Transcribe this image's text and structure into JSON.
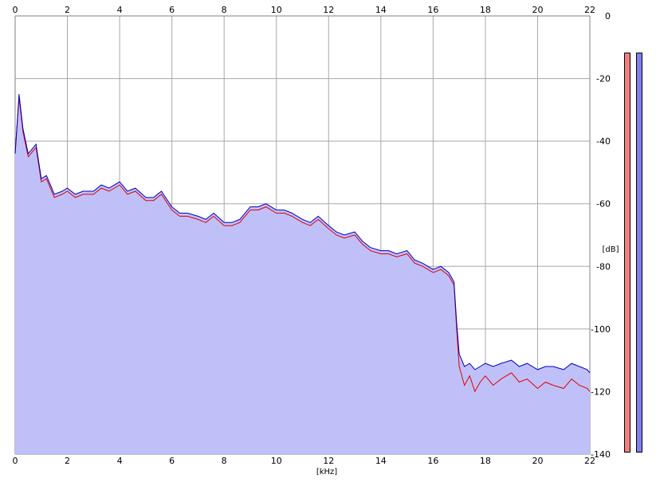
{
  "chart_data": {
    "type": "area",
    "xlabel": "[kHz]",
    "ylabel": "[dB]",
    "xlim": [
      0,
      22
    ],
    "ylim": [
      -140,
      0
    ],
    "x_ticks": [
      "0",
      "2",
      "4",
      "6",
      "8",
      "10",
      "12",
      "14",
      "16",
      "18",
      "20",
      "22"
    ],
    "y_ticks": [
      "0",
      "-20",
      "-40",
      "-60",
      "-80",
      "-100",
      "-120",
      "-140"
    ],
    "grid": true,
    "series": [
      {
        "color": "#e00000",
        "x": [
          0,
          0.15,
          0.3,
          0.5,
          0.8,
          1,
          1.2,
          1.5,
          1.8,
          2,
          2.3,
          2.6,
          3,
          3.3,
          3.6,
          4,
          4.3,
          4.6,
          5,
          5.3,
          5.6,
          6,
          6.3,
          6.6,
          7,
          7.3,
          7.6,
          8,
          8.3,
          8.6,
          9,
          9.3,
          9.6,
          10,
          10.3,
          10.6,
          11,
          11.3,
          11.6,
          12,
          12.3,
          12.6,
          13,
          13.3,
          13.6,
          14,
          14.3,
          14.6,
          15,
          15.3,
          15.6,
          16,
          16.3,
          16.6,
          16.8,
          16.9,
          17,
          17.2,
          17.4,
          17.6,
          17.8,
          18,
          18.3,
          18.6,
          19,
          19.3,
          19.6,
          20,
          20.3,
          20.6,
          21,
          21.3,
          21.6,
          21.9,
          22
        ],
        "values": [
          -44,
          -26,
          -37,
          -45,
          -42,
          -53,
          -52,
          -58,
          -57,
          -56,
          -58,
          -57,
          -57,
          -55,
          -56,
          -54,
          -57,
          -56,
          -59,
          -59,
          -57,
          -62,
          -64,
          -64,
          -65,
          -66,
          -64,
          -67,
          -67,
          -66,
          -62,
          -62,
          -61,
          -63,
          -63,
          -64,
          -66,
          -67,
          -65,
          -68,
          -70,
          -71,
          -70,
          -73,
          -75,
          -76,
          -76,
          -77,
          -76,
          -79,
          -80,
          -82,
          -81,
          -83,
          -86,
          -100,
          -112,
          -118,
          -115,
          -120,
          -117,
          -115,
          -118,
          -116,
          -114,
          -117,
          -116,
          -119,
          -117,
          -118,
          -119,
          -116,
          -118,
          -119,
          -120
        ]
      },
      {
        "color": "#0000c0",
        "x": [
          0,
          0.15,
          0.3,
          0.5,
          0.8,
          1,
          1.2,
          1.5,
          1.8,
          2,
          2.3,
          2.6,
          3,
          3.3,
          3.6,
          4,
          4.3,
          4.6,
          5,
          5.3,
          5.6,
          6,
          6.3,
          6.6,
          7,
          7.3,
          7.6,
          8,
          8.3,
          8.6,
          9,
          9.3,
          9.6,
          10,
          10.3,
          10.6,
          11,
          11.3,
          11.6,
          12,
          12.3,
          12.6,
          13,
          13.3,
          13.6,
          14,
          14.3,
          14.6,
          15,
          15.3,
          15.6,
          16,
          16.3,
          16.6,
          16.8,
          16.9,
          17,
          17.2,
          17.4,
          17.6,
          17.8,
          18,
          18.3,
          18.6,
          19,
          19.3,
          19.6,
          20,
          20.3,
          20.6,
          21,
          21.3,
          21.6,
          21.9,
          22
        ],
        "values": [
          -44,
          -25,
          -36,
          -44,
          -41,
          -52,
          -51,
          -57,
          -56,
          -55,
          -57,
          -56,
          -56,
          -54,
          -55,
          -53,
          -56,
          -55,
          -58,
          -58,
          -56,
          -61,
          -63,
          -63,
          -64,
          -65,
          -63,
          -66,
          -66,
          -65,
          -61,
          -61,
          -60,
          -62,
          -62,
          -63,
          -65,
          -66,
          -64,
          -67,
          -69,
          -70,
          -69,
          -72,
          -74,
          -75,
          -75,
          -76,
          -75,
          -78,
          -79,
          -81,
          -80,
          -82,
          -85,
          -98,
          -108,
          -112,
          -111,
          -113,
          -112,
          -111,
          -112,
          -111,
          -110,
          -112,
          -111,
          -113,
          -112,
          -112,
          -113,
          -111,
          -112,
          -113,
          -114
        ]
      }
    ]
  },
  "meters": {
    "left_color": "#f08080",
    "right_color": "#8080f0"
  },
  "style": {
    "fill_color": "#c0c0f8",
    "grid_color": "#a8a8a8",
    "axis_color": "#808080"
  }
}
